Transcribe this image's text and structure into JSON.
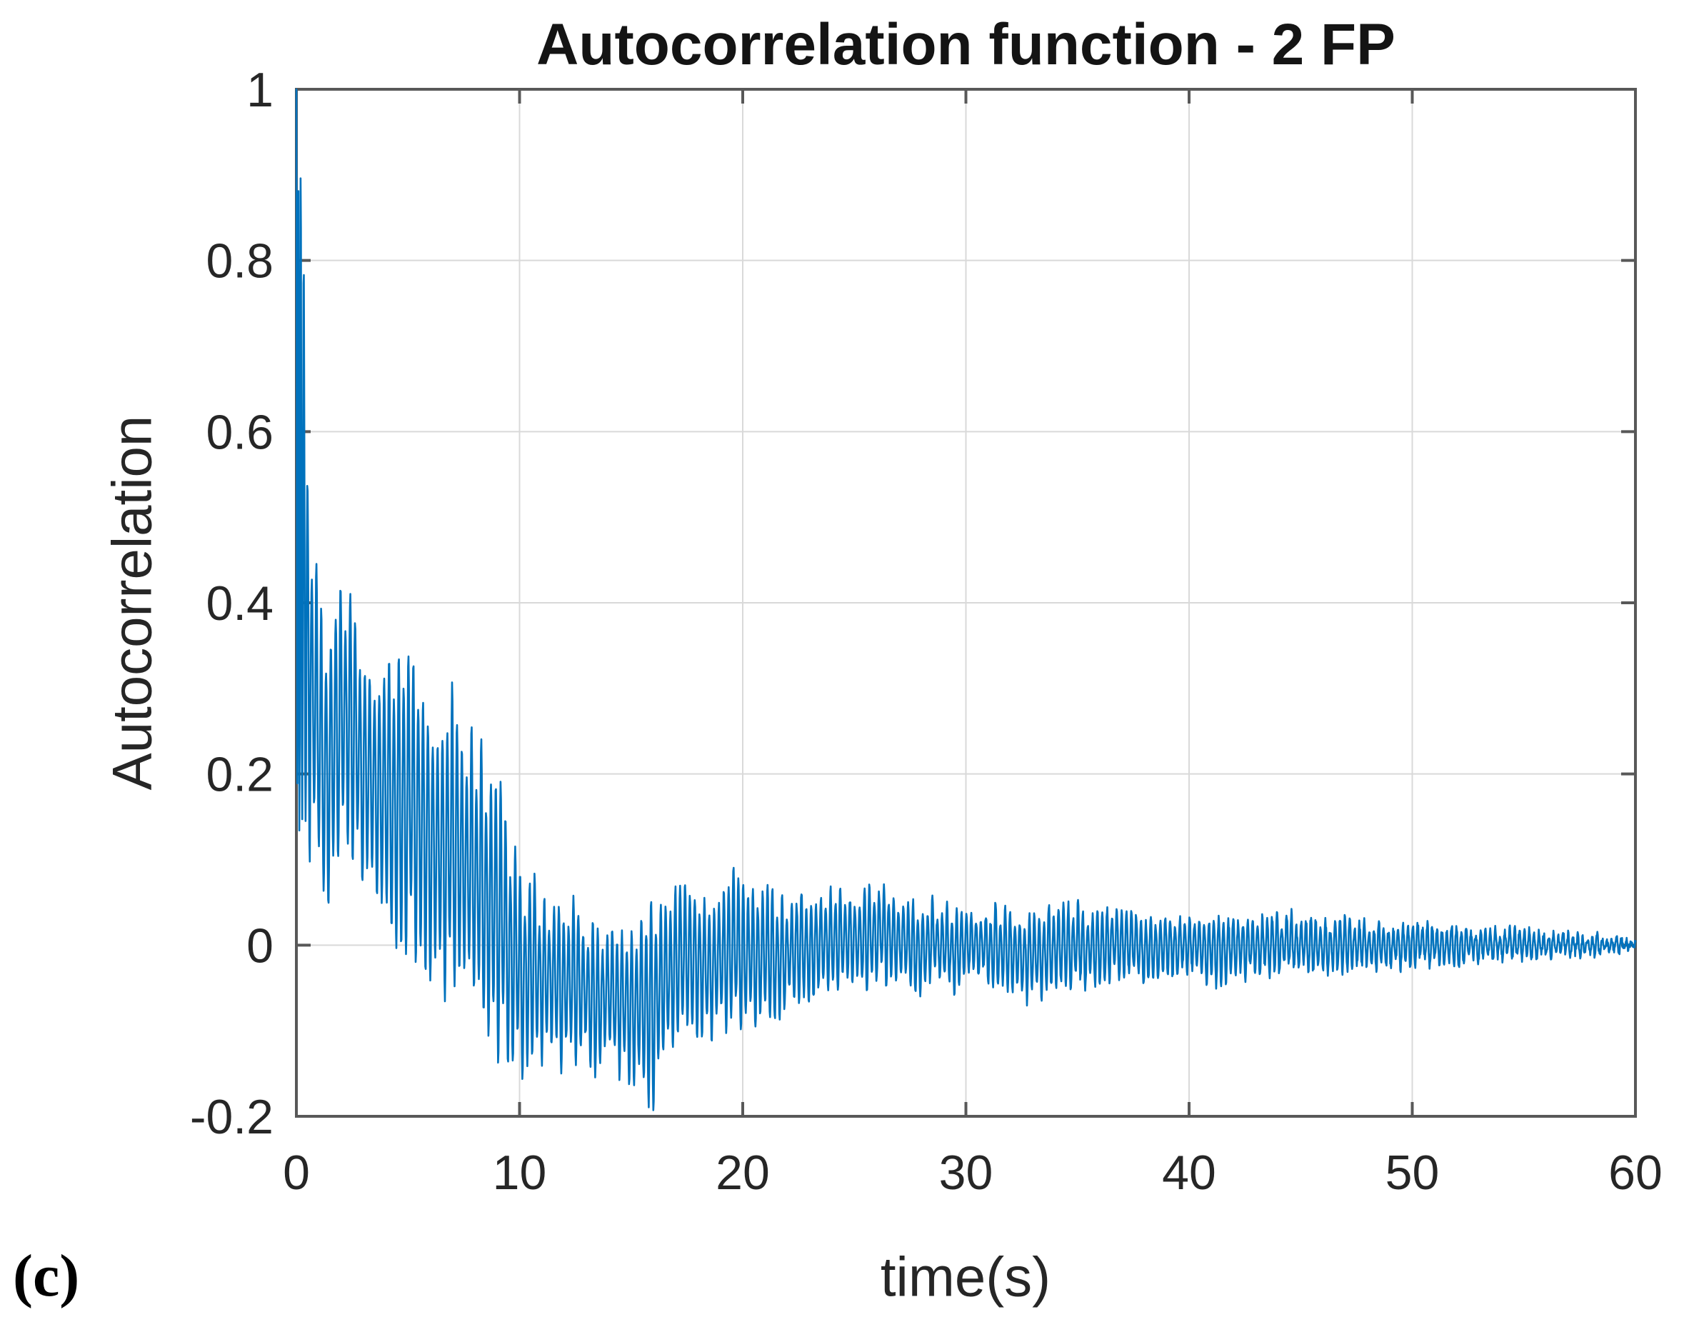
{
  "figure": {
    "panel_label": "(c)",
    "background_color": "#ffffff"
  },
  "chart_data": {
    "type": "line",
    "title": "Autocorrelation function - 2 FP",
    "xlabel": "time(s)",
    "ylabel": "Autocorrelation",
    "xlim": [
      0,
      60
    ],
    "ylim": [
      -0.2,
      1
    ],
    "xticks": [
      0,
      10,
      20,
      30,
      40,
      50,
      60
    ],
    "xtick_labels": [
      "0",
      "10",
      "20",
      "30",
      "40",
      "50",
      "60"
    ],
    "yticks": [
      -0.2,
      0,
      0.2,
      0.4,
      0.6,
      0.8,
      1
    ],
    "ytick_labels": [
      "-0.2",
      "0",
      "0.2",
      "0.4",
      "0.6",
      "0.8",
      "1"
    ],
    "grid": true,
    "grid_color": "#d9d9d9",
    "axis_color": "#585858",
    "text_color": "#262626",
    "legend": "none",
    "series": [
      {
        "name": "autocorrelation",
        "color": "#0072BD",
        "description": "Dense oscillatory autocorrelation: 1 at lag 0, fast initial drop, noisy decaying band that dips to about -0.19 near 16 s, small positive rebound near 25 s, converges to 0 by 60 s",
        "oscillation_hz": 4.6,
        "envelope_t_upper_lower": [
          [
            0,
            1.0,
            0.13
          ],
          [
            0.25,
            0.95,
            0.11
          ],
          [
            0.5,
            0.62,
            0.1
          ],
          [
            0.75,
            0.5,
            0.09
          ],
          [
            1,
            0.42,
            0.06
          ],
          [
            1.25,
            0.36,
            0.03
          ],
          [
            1.5,
            0.38,
            0.05
          ],
          [
            1.75,
            0.41,
            0.07
          ],
          [
            2,
            0.45,
            0.09
          ],
          [
            2.25,
            0.44,
            0.1
          ],
          [
            2.5,
            0.41,
            0.1
          ],
          [
            2.75,
            0.38,
            0.08
          ],
          [
            3,
            0.35,
            0.06
          ],
          [
            3.25,
            0.36,
            0.05
          ],
          [
            3.5,
            0.35,
            0.03
          ],
          [
            4,
            0.34,
            0.02
          ],
          [
            4.5,
            0.33,
            0.0
          ],
          [
            5,
            0.35,
            -0.02
          ],
          [
            5.5,
            0.33,
            -0.03
          ],
          [
            6,
            0.3,
            -0.05
          ],
          [
            6.5,
            0.28,
            -0.06
          ],
          [
            7,
            0.3,
            -0.07
          ],
          [
            7.5,
            0.28,
            -0.08
          ],
          [
            8,
            0.26,
            -0.1
          ],
          [
            8.5,
            0.22,
            -0.11
          ],
          [
            9,
            0.2,
            -0.13
          ],
          [
            9.5,
            0.16,
            -0.16
          ],
          [
            10,
            0.1,
            -0.16
          ],
          [
            10.5,
            0.09,
            -0.14
          ],
          [
            11,
            0.07,
            -0.14
          ],
          [
            11.5,
            0.06,
            -0.13
          ],
          [
            12,
            0.05,
            -0.15
          ],
          [
            12.5,
            0.06,
            -0.14
          ],
          [
            13,
            0.04,
            -0.15
          ],
          [
            13.5,
            0.03,
            -0.16
          ],
          [
            14,
            0.04,
            -0.15
          ],
          [
            14.5,
            0.03,
            -0.16
          ],
          [
            15,
            0.03,
            -0.17
          ],
          [
            15.5,
            0.04,
            -0.18
          ],
          [
            16,
            0.05,
            -0.19
          ],
          [
            16.5,
            0.07,
            -0.15
          ],
          [
            17,
            0.08,
            -0.13
          ],
          [
            17.5,
            0.09,
            -0.12
          ],
          [
            18,
            0.08,
            -0.11
          ],
          [
            18.5,
            0.06,
            -0.12
          ],
          [
            19,
            0.07,
            -0.11
          ],
          [
            19.5,
            0.09,
            -0.1
          ],
          [
            20,
            0.08,
            -0.11
          ],
          [
            20.5,
            0.07,
            -0.1
          ],
          [
            21,
            0.08,
            -0.1
          ],
          [
            21.5,
            0.06,
            -0.09
          ],
          [
            22,
            0.06,
            -0.08
          ],
          [
            22.5,
            0.07,
            -0.07
          ],
          [
            23,
            0.06,
            -0.07
          ],
          [
            23.5,
            0.07,
            -0.06
          ],
          [
            24,
            0.07,
            -0.06
          ],
          [
            24.5,
            0.07,
            -0.05
          ],
          [
            25,
            0.07,
            -0.05
          ],
          [
            25.5,
            0.07,
            -0.06
          ],
          [
            26,
            0.08,
            -0.05
          ],
          [
            26.5,
            0.08,
            -0.05
          ],
          [
            27,
            0.06,
            -0.05
          ],
          [
            27.5,
            0.06,
            -0.06
          ],
          [
            28,
            0.05,
            -0.06
          ],
          [
            28.5,
            0.06,
            -0.05
          ],
          [
            29,
            0.05,
            -0.05
          ],
          [
            29.5,
            0.05,
            -0.06
          ],
          [
            30,
            0.05,
            -0.05
          ],
          [
            31,
            0.05,
            -0.05
          ],
          [
            32,
            0.05,
            -0.06
          ],
          [
            33,
            0.04,
            -0.07
          ],
          [
            34,
            0.05,
            -0.06
          ],
          [
            35,
            0.05,
            -0.05
          ],
          [
            36,
            0.04,
            -0.05
          ],
          [
            37,
            0.05,
            -0.04
          ],
          [
            38,
            0.04,
            -0.05
          ],
          [
            39,
            0.04,
            -0.04
          ],
          [
            40,
            0.04,
            -0.04
          ],
          [
            41,
            0.04,
            -0.05
          ],
          [
            42,
            0.04,
            -0.04
          ],
          [
            43,
            0.035,
            -0.04
          ],
          [
            44,
            0.04,
            -0.035
          ],
          [
            45,
            0.035,
            -0.035
          ],
          [
            46,
            0.03,
            -0.035
          ],
          [
            47,
            0.035,
            -0.03
          ],
          [
            48,
            0.03,
            -0.03
          ],
          [
            49,
            0.03,
            -0.03
          ],
          [
            50,
            0.03,
            -0.025
          ],
          [
            51,
            0.025,
            -0.025
          ],
          [
            52,
            0.025,
            -0.025
          ],
          [
            53,
            0.02,
            -0.02
          ],
          [
            54,
            0.02,
            -0.02
          ],
          [
            55,
            0.02,
            -0.018
          ],
          [
            56,
            0.015,
            -0.015
          ],
          [
            57,
            0.015,
            -0.015
          ],
          [
            58,
            0.012,
            -0.012
          ],
          [
            59,
            0.01,
            -0.01
          ],
          [
            60,
            0.008,
            -0.006
          ]
        ]
      }
    ]
  }
}
